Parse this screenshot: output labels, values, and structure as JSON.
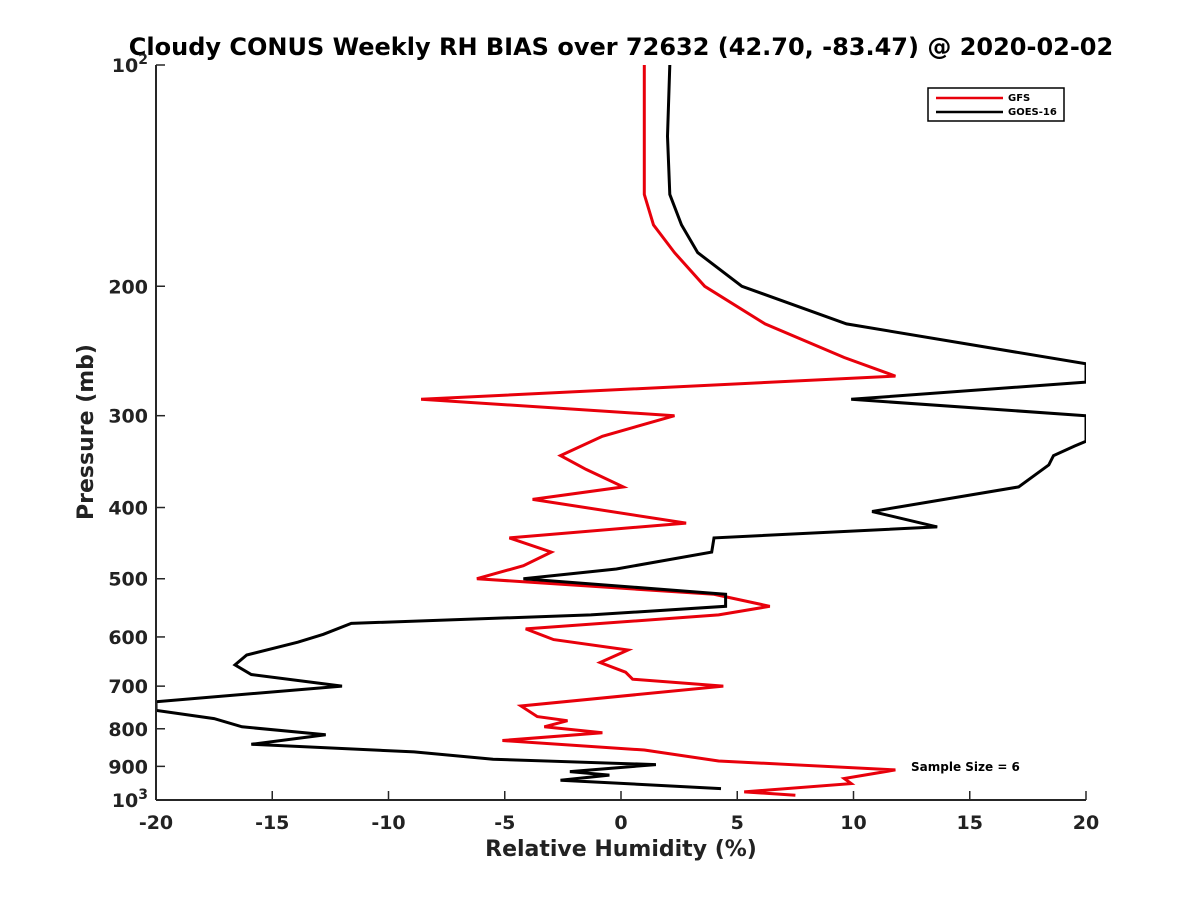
{
  "chart_data": {
    "type": "line",
    "title": "Cloudy CONUS Weekly RH BIAS over 72632 (42.70, -83.47) @ 2020-02-02",
    "xlabel": "Relative Humidity (%)",
    "ylabel": "Pressure (mb)",
    "xlim": [
      -20,
      20
    ],
    "ylim": [
      100,
      1000
    ],
    "y_scale": "log",
    "y_reversed": true,
    "grid": false,
    "legend_position": "top-right",
    "x_ticks": [
      -20,
      -15,
      -10,
      -5,
      0,
      5,
      10,
      15,
      20
    ],
    "y_ticks": [
      {
        "value": 100,
        "base": "10",
        "exp": "2"
      },
      {
        "value": 200,
        "label": "200"
      },
      {
        "value": 300,
        "label": "300"
      },
      {
        "value": 400,
        "label": "400"
      },
      {
        "value": 500,
        "label": "500"
      },
      {
        "value": 600,
        "label": "600"
      },
      {
        "value": 700,
        "label": "700"
      },
      {
        "value": 800,
        "label": "800"
      },
      {
        "value": 900,
        "label": "900"
      },
      {
        "value": 1000,
        "base": "10",
        "exp": "3"
      }
    ],
    "annotation": "Sample Size = 6",
    "series": [
      {
        "name": "GFS",
        "color": "#e8000b",
        "points": [
          [
            1.0,
            100
          ],
          [
            1.0,
            125
          ],
          [
            1.0,
            150
          ],
          [
            1.4,
            165
          ],
          [
            2.3,
            180
          ],
          [
            3.6,
            200
          ],
          [
            6.2,
            225
          ],
          [
            9.6,
            250
          ],
          [
            11.8,
            265
          ],
          [
            -8.6,
            285
          ],
          [
            2.3,
            300
          ],
          [
            -0.8,
            320
          ],
          [
            -2.6,
            340
          ],
          [
            -1.5,
            355
          ],
          [
            0.1,
            375
          ],
          [
            -3.8,
            390
          ],
          [
            2.8,
            420
          ],
          [
            -4.8,
            440
          ],
          [
            -3.0,
            460
          ],
          [
            -4.2,
            480
          ],
          [
            -6.2,
            500
          ],
          [
            4.0,
            525
          ],
          [
            6.4,
            545
          ],
          [
            4.2,
            560
          ],
          [
            -4.1,
            585
          ],
          [
            -2.9,
            605
          ],
          [
            0.3,
            625
          ],
          [
            -0.9,
            650
          ],
          [
            0.2,
            670
          ],
          [
            0.5,
            685
          ],
          [
            4.4,
            700
          ],
          [
            -4.3,
            745
          ],
          [
            -3.6,
            770
          ],
          [
            -2.3,
            780
          ],
          [
            -3.3,
            795
          ],
          [
            -0.8,
            810
          ],
          [
            -5.1,
            830
          ],
          [
            1.0,
            855
          ],
          [
            4.2,
            885
          ],
          [
            11.8,
            910
          ],
          [
            9.6,
            935
          ],
          [
            9.9,
            950
          ],
          [
            5.3,
            975
          ],
          [
            7.5,
            985
          ]
        ]
      },
      {
        "name": "GOES-16",
        "color": "#000000",
        "points": [
          [
            2.1,
            100
          ],
          [
            2.0,
            125
          ],
          [
            2.1,
            150
          ],
          [
            2.6,
            165
          ],
          [
            3.3,
            180
          ],
          [
            5.2,
            200
          ],
          [
            9.7,
            225
          ],
          [
            20.0,
            255
          ],
          [
            20.0,
            270
          ],
          [
            9.9,
            285
          ],
          [
            20.0,
            300
          ],
          [
            20.0,
            325
          ],
          [
            19.5,
            330
          ],
          [
            18.6,
            340
          ],
          [
            18.4,
            350
          ],
          [
            17.1,
            375
          ],
          [
            10.8,
            405
          ],
          [
            13.6,
            425
          ],
          [
            4.0,
            440
          ],
          [
            3.9,
            460
          ],
          [
            -0.2,
            485
          ],
          [
            -4.2,
            500
          ],
          [
            4.5,
            525
          ],
          [
            4.5,
            545
          ],
          [
            -1.3,
            560
          ],
          [
            -11.6,
            575
          ],
          [
            -12.8,
            595
          ],
          [
            -13.9,
            610
          ],
          [
            -16.1,
            635
          ],
          [
            -16.6,
            655
          ],
          [
            -15.9,
            675
          ],
          [
            -12.0,
            700
          ],
          [
            -20.0,
            735
          ],
          [
            -20.0,
            755
          ],
          [
            -17.5,
            775
          ],
          [
            -16.3,
            795
          ],
          [
            -12.7,
            815
          ],
          [
            -15.9,
            840
          ],
          [
            -8.9,
            860
          ],
          [
            -5.5,
            880
          ],
          [
            1.5,
            895
          ],
          [
            -2.2,
            915
          ],
          [
            -0.5,
            925
          ],
          [
            -2.6,
            940
          ],
          [
            4.3,
            965
          ]
        ]
      }
    ]
  }
}
